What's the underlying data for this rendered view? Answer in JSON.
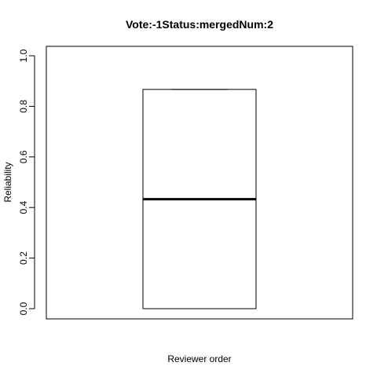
{
  "chart_data": {
    "type": "boxplot",
    "title": "Vote:-1Status:mergedNum:2",
    "xlabel": "Reviewer order",
    "ylabel": "Reliability",
    "ylim": [
      0.0,
      1.0
    ],
    "yticks": [
      "0.0",
      "0.2",
      "0.4",
      "0.6",
      "0.8",
      "1.0"
    ],
    "grid": false,
    "boxes": [
      {
        "min": 0.0,
        "q1": 0.0,
        "median": 0.433,
        "q3": 0.867,
        "max": 0.867
      }
    ]
  }
}
